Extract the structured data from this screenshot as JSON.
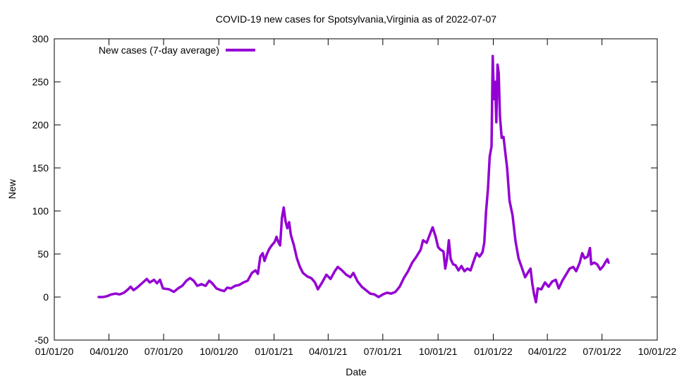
{
  "chart_data": {
    "type": "line",
    "title": "COVID-19 new cases for Spotsylvania,Virginia as of 2022-07-07",
    "xlabel": "Date",
    "ylabel": "New",
    "x_ticks": [
      "01/01/20",
      "04/01/20",
      "07/01/20",
      "10/01/20",
      "01/01/21",
      "04/01/21",
      "07/01/21",
      "10/01/21",
      "01/01/22",
      "04/01/22",
      "07/01/22",
      "10/01/22"
    ],
    "x_range": [
      "2020-01-01",
      "2022-10-01"
    ],
    "y_ticks": [
      -50,
      0,
      50,
      100,
      150,
      200,
      250,
      300
    ],
    "ylim": [
      -50,
      300
    ],
    "grid": false,
    "legend_position": "top-left",
    "colors": {
      "series": "#9400d3",
      "axis": "#000000"
    },
    "series": [
      {
        "name": "New cases (7-day average)",
        "points": [
          [
            "2020-03-15",
            0
          ],
          [
            "2020-03-22",
            0
          ],
          [
            "2020-03-29",
            1
          ],
          [
            "2020-04-05",
            3
          ],
          [
            "2020-04-12",
            4
          ],
          [
            "2020-04-19",
            3
          ],
          [
            "2020-04-26",
            5
          ],
          [
            "2020-05-03",
            9
          ],
          [
            "2020-05-07",
            12
          ],
          [
            "2020-05-12",
            8
          ],
          [
            "2020-05-18",
            11
          ],
          [
            "2020-05-26",
            16
          ],
          [
            "2020-06-03",
            21
          ],
          [
            "2020-06-08",
            17
          ],
          [
            "2020-06-15",
            20
          ],
          [
            "2020-06-20",
            16
          ],
          [
            "2020-06-25",
            20
          ],
          [
            "2020-06-30",
            10
          ],
          [
            "2020-07-10",
            9
          ],
          [
            "2020-07-18",
            6
          ],
          [
            "2020-07-25",
            10
          ],
          [
            "2020-08-01",
            13
          ],
          [
            "2020-08-08",
            19
          ],
          [
            "2020-08-14",
            22
          ],
          [
            "2020-08-20",
            19
          ],
          [
            "2020-08-26",
            13
          ],
          [
            "2020-09-02",
            15
          ],
          [
            "2020-09-09",
            13
          ],
          [
            "2020-09-15",
            19
          ],
          [
            "2020-09-20",
            16
          ],
          [
            "2020-09-27",
            10
          ],
          [
            "2020-10-04",
            8
          ],
          [
            "2020-10-10",
            7
          ],
          [
            "2020-10-15",
            11
          ],
          [
            "2020-10-21",
            10
          ],
          [
            "2020-10-28",
            13
          ],
          [
            "2020-11-04",
            14
          ],
          [
            "2020-11-11",
            17
          ],
          [
            "2020-11-18",
            19
          ],
          [
            "2020-11-25",
            28
          ],
          [
            "2020-12-01",
            31
          ],
          [
            "2020-12-05",
            27
          ],
          [
            "2020-12-09",
            47
          ],
          [
            "2020-12-13",
            51
          ],
          [
            "2020-12-16",
            42
          ],
          [
            "2020-12-20",
            50
          ],
          [
            "2020-12-24",
            56
          ],
          [
            "2020-12-28",
            60
          ],
          [
            "2021-01-02",
            64
          ],
          [
            "2021-01-05",
            70
          ],
          [
            "2021-01-08",
            64
          ],
          [
            "2021-01-11",
            60
          ],
          [
            "2021-01-14",
            92
          ],
          [
            "2021-01-17",
            104
          ],
          [
            "2021-01-20",
            88
          ],
          [
            "2021-01-23",
            80
          ],
          [
            "2021-01-26",
            87
          ],
          [
            "2021-01-29",
            72
          ],
          [
            "2021-02-03",
            60
          ],
          [
            "2021-02-08",
            45
          ],
          [
            "2021-02-13",
            35
          ],
          [
            "2021-02-18",
            28
          ],
          [
            "2021-02-25",
            24
          ],
          [
            "2021-03-04",
            22
          ],
          [
            "2021-03-10",
            17
          ],
          [
            "2021-03-15",
            9
          ],
          [
            "2021-03-22",
            17
          ],
          [
            "2021-03-29",
            26
          ],
          [
            "2021-04-05",
            21
          ],
          [
            "2021-04-12",
            30
          ],
          [
            "2021-04-17",
            35
          ],
          [
            "2021-04-24",
            31
          ],
          [
            "2021-05-01",
            26
          ],
          [
            "2021-05-08",
            23
          ],
          [
            "2021-05-13",
            28
          ],
          [
            "2021-05-20",
            18
          ],
          [
            "2021-05-27",
            12
          ],
          [
            "2021-06-03",
            8
          ],
          [
            "2021-06-10",
            4
          ],
          [
            "2021-06-17",
            3
          ],
          [
            "2021-06-24",
            0
          ],
          [
            "2021-07-01",
            3
          ],
          [
            "2021-07-08",
            5
          ],
          [
            "2021-07-15",
            4
          ],
          [
            "2021-07-22",
            6
          ],
          [
            "2021-07-29",
            12
          ],
          [
            "2021-08-05",
            22
          ],
          [
            "2021-08-12",
            30
          ],
          [
            "2021-08-19",
            40
          ],
          [
            "2021-08-26",
            47
          ],
          [
            "2021-09-02",
            55
          ],
          [
            "2021-09-06",
            66
          ],
          [
            "2021-09-12",
            63
          ],
          [
            "2021-09-18",
            74
          ],
          [
            "2021-09-22",
            81
          ],
          [
            "2021-09-27",
            70
          ],
          [
            "2021-10-01",
            58
          ],
          [
            "2021-10-05",
            55
          ],
          [
            "2021-10-10",
            53
          ],
          [
            "2021-10-13",
            33
          ],
          [
            "2021-10-16",
            45
          ],
          [
            "2021-10-19",
            66
          ],
          [
            "2021-10-22",
            44
          ],
          [
            "2021-10-26",
            38
          ],
          [
            "2021-10-30",
            37
          ],
          [
            "2021-11-04",
            31
          ],
          [
            "2021-11-09",
            36
          ],
          [
            "2021-11-14",
            30
          ],
          [
            "2021-11-19",
            33
          ],
          [
            "2021-11-24",
            31
          ],
          [
            "2021-11-29",
            41
          ],
          [
            "2021-12-04",
            51
          ],
          [
            "2021-12-09",
            47
          ],
          [
            "2021-12-14",
            52
          ],
          [
            "2021-12-17",
            63
          ],
          [
            "2021-12-20",
            100
          ],
          [
            "2021-12-23",
            125
          ],
          [
            "2021-12-26",
            163
          ],
          [
            "2021-12-29",
            175
          ],
          [
            "2021-12-31",
            280
          ],
          [
            "2022-01-02",
            230
          ],
          [
            "2022-01-04",
            250
          ],
          [
            "2022-01-06",
            203
          ],
          [
            "2022-01-08",
            270
          ],
          [
            "2022-01-10",
            260
          ],
          [
            "2022-01-12",
            210
          ],
          [
            "2022-01-15",
            185
          ],
          [
            "2022-01-18",
            186
          ],
          [
            "2022-01-21",
            168
          ],
          [
            "2022-01-24",
            150
          ],
          [
            "2022-01-28",
            112
          ],
          [
            "2022-02-02",
            95
          ],
          [
            "2022-02-07",
            65
          ],
          [
            "2022-02-12",
            45
          ],
          [
            "2022-02-18",
            33
          ],
          [
            "2022-02-23",
            23
          ],
          [
            "2022-03-01",
            30
          ],
          [
            "2022-03-04",
            33
          ],
          [
            "2022-03-07",
            15
          ],
          [
            "2022-03-10",
            3
          ],
          [
            "2022-03-13",
            -6
          ],
          [
            "2022-03-16",
            10
          ],
          [
            "2022-03-22",
            9
          ],
          [
            "2022-03-28",
            17
          ],
          [
            "2022-04-03",
            12
          ],
          [
            "2022-04-09",
            18
          ],
          [
            "2022-04-15",
            20
          ],
          [
            "2022-04-20",
            10
          ],
          [
            "2022-04-26",
            19
          ],
          [
            "2022-05-02",
            26
          ],
          [
            "2022-05-08",
            33
          ],
          [
            "2022-05-14",
            35
          ],
          [
            "2022-05-19",
            30
          ],
          [
            "2022-05-25",
            40
          ],
          [
            "2022-05-29",
            51
          ],
          [
            "2022-06-02",
            45
          ],
          [
            "2022-06-07",
            47
          ],
          [
            "2022-06-11",
            57
          ],
          [
            "2022-06-13",
            38
          ],
          [
            "2022-06-18",
            40
          ],
          [
            "2022-06-23",
            38
          ],
          [
            "2022-06-28",
            32
          ],
          [
            "2022-07-03",
            36
          ],
          [
            "2022-07-07",
            41
          ],
          [
            "2022-07-10",
            44
          ],
          [
            "2022-07-12",
            40
          ]
        ]
      }
    ]
  }
}
